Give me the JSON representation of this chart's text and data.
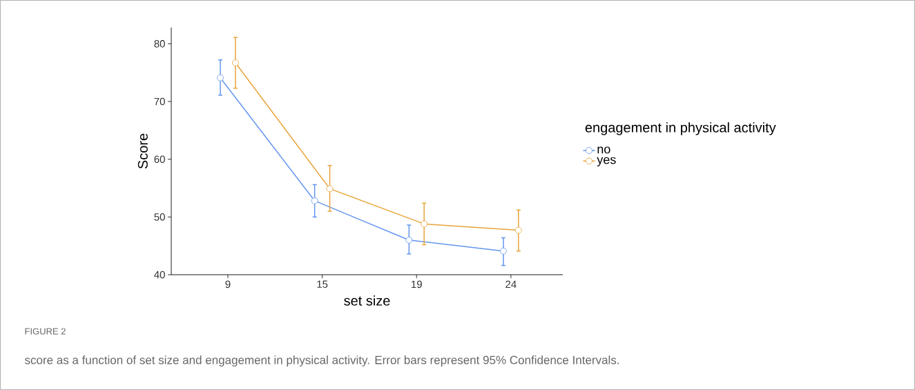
{
  "chart_data": {
    "type": "line",
    "xlabel": "set size",
    "ylabel": "Score",
    "legend_title": "engagement in physical activity",
    "categories": [
      "9",
      "15",
      "19",
      "24"
    ],
    "series": [
      {
        "name": "no",
        "color": "#6495ed",
        "values": [
          74.1,
          52.8,
          46.0,
          44.1
        ],
        "errors": [
          [
            71.1,
            77.2
          ],
          [
            50.0,
            55.6
          ],
          [
            43.6,
            48.6
          ],
          [
            41.6,
            46.4
          ]
        ]
      },
      {
        "name": "yes",
        "color": "#e8a33a",
        "values": [
          76.7,
          54.9,
          48.8,
          47.7
        ],
        "errors": [
          [
            72.3,
            81.1
          ],
          [
            51.0,
            58.9
          ],
          [
            45.2,
            52.4
          ],
          [
            44.1,
            51.2
          ]
        ]
      }
    ],
    "ylim": [
      40,
      82.8
    ],
    "yticks": [
      40,
      50,
      60,
      70,
      80
    ],
    "grid": false,
    "legend": "right",
    "marker": "circle",
    "line_style": "solid",
    "annotations": [
      "FIGURE 2",
      "score as a function of set size and engagement in physical activity. Error bars represent 95% Confidence Intervals."
    ]
  }
}
